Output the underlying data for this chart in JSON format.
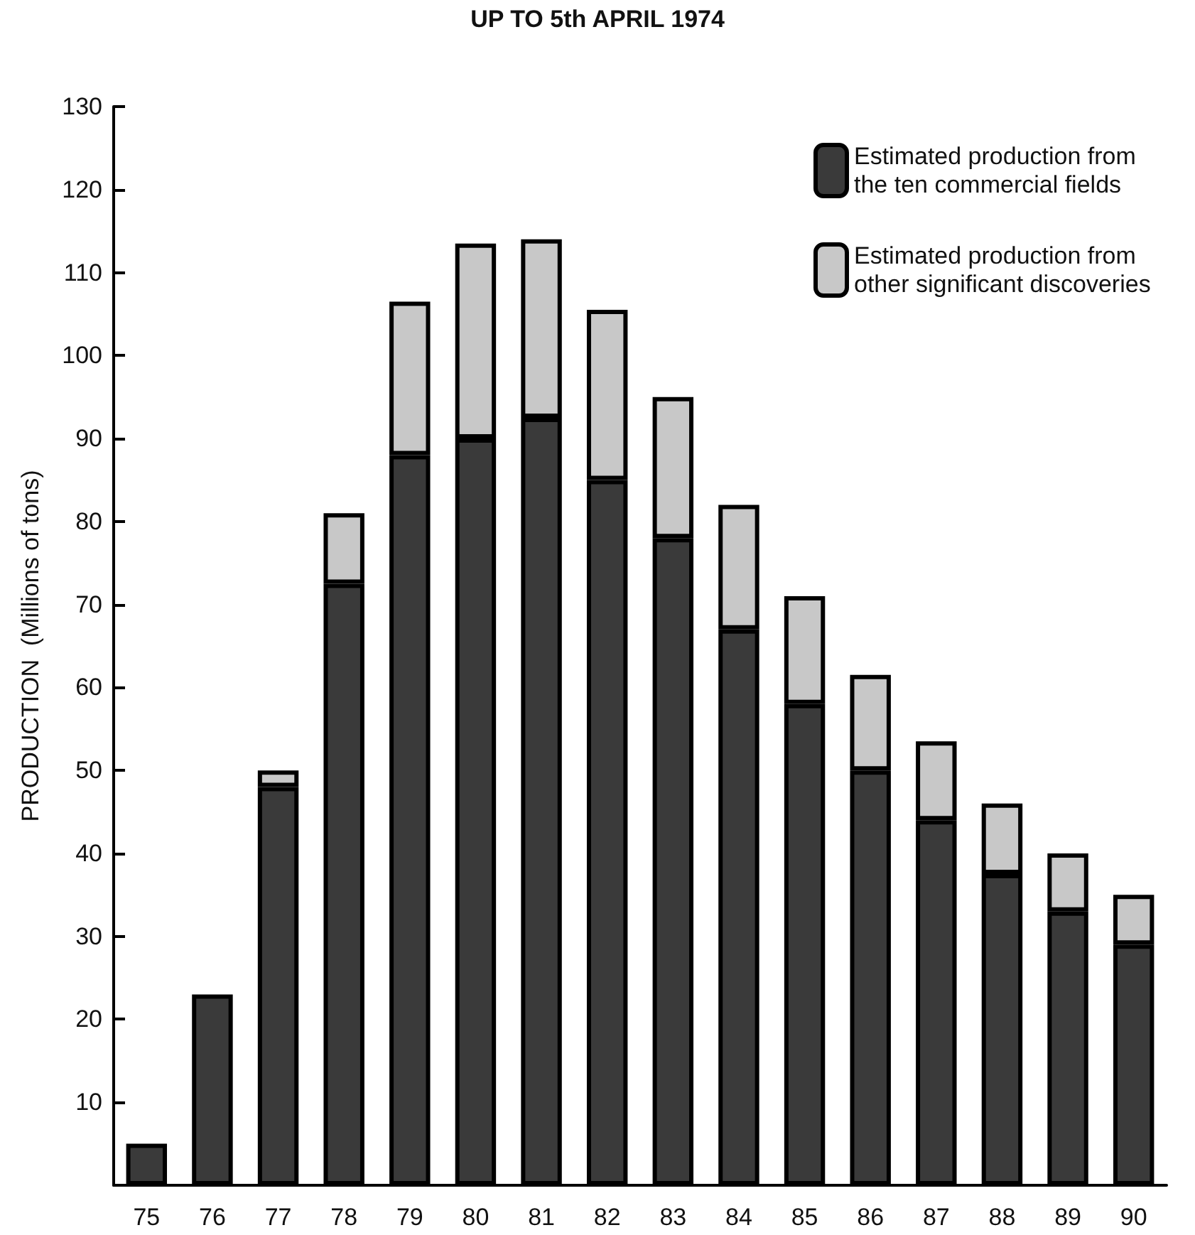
{
  "chart_data": {
    "type": "bar",
    "title": "UP TO 5th APRIL 1974",
    "ylabel": "PRODUCTION  (Millions of tons)",
    "categories": [
      "75",
      "76",
      "77",
      "78",
      "79",
      "80",
      "81",
      "82",
      "83",
      "84",
      "85",
      "86",
      "87",
      "88",
      "89",
      "90"
    ],
    "stacked": true,
    "series": [
      {
        "name": "Estimated production from the ten commercial fields",
        "color": "#3a3a3a",
        "values": [
          5,
          23,
          48,
          72.5,
          88,
          90,
          92.5,
          85,
          78,
          67,
          58,
          50,
          44,
          37.5,
          33,
          29
        ]
      },
      {
        "name": "Estimated production from other significant discoveries",
        "color": "#c8c8c8",
        "values": [
          null,
          null,
          2,
          8.5,
          18.5,
          23.5,
          21.5,
          20.5,
          17,
          15,
          13,
          11.5,
          9.5,
          8.5,
          7,
          6
        ]
      }
    ],
    "ylim": [
      0,
      130
    ],
    "yticks": [
      10,
      20,
      30,
      40,
      50,
      60,
      70,
      80,
      90,
      100,
      110,
      120,
      130
    ],
    "grid": false,
    "legend": "top right"
  }
}
